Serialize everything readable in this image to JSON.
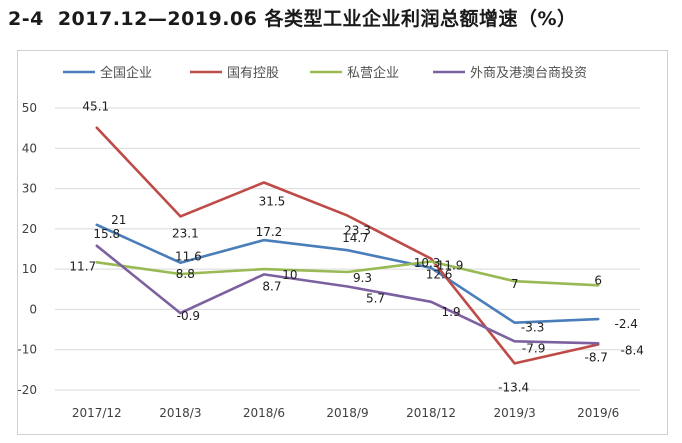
{
  "figure": {
    "number": "2-4",
    "title": "2017.12—2019.06 各类型工业企业利润总额增速（%）"
  },
  "chart_data": {
    "type": "line",
    "title": "",
    "xlabel": "",
    "ylabel": "",
    "categories": [
      "2017/12",
      "2018/3",
      "2018/6",
      "2018/9",
      "2018/12",
      "2019/3",
      "2019/6"
    ],
    "ylim": [
      -20,
      50
    ],
    "yticks": [
      -20,
      -10,
      0,
      10,
      20,
      30,
      40,
      50
    ],
    "grid": "horizontal",
    "legend_position": "top",
    "series": [
      {
        "name": "全国企业",
        "color": "#4a7ebb",
        "values": [
          21,
          11.6,
          17.2,
          14.7,
          10.3,
          -3.3,
          -2.4
        ],
        "labels": [
          "21",
          "11.6",
          "17.2",
          "14.7",
          "10.3",
          "-3.3",
          "-2.4"
        ]
      },
      {
        "name": "国有控股",
        "color": "#be4b48",
        "values": [
          45.1,
          23.1,
          31.5,
          23.3,
          12.6,
          -13.4,
          -8.7
        ],
        "labels": [
          "45.1",
          "23.1",
          "31.5",
          "23.3",
          "12.6",
          "-13.4",
          "-8.7"
        ]
      },
      {
        "name": "私营企业",
        "color": "#98b954",
        "values": [
          11.7,
          8.8,
          10,
          9.3,
          11.9,
          7,
          6
        ],
        "labels": [
          "11.7",
          "8.8",
          "10",
          "9.3",
          "11.9",
          "7",
          "6"
        ]
      },
      {
        "name": "外商及港澳台商投资",
        "color": "#7d60a0",
        "values": [
          15.8,
          -0.9,
          8.7,
          5.7,
          1.9,
          -7.9,
          -8.4
        ],
        "labels": [
          "15.8",
          "-0.9",
          "8.7",
          "5.7",
          "1.9",
          "-7.9",
          "-8.4"
        ]
      }
    ]
  }
}
